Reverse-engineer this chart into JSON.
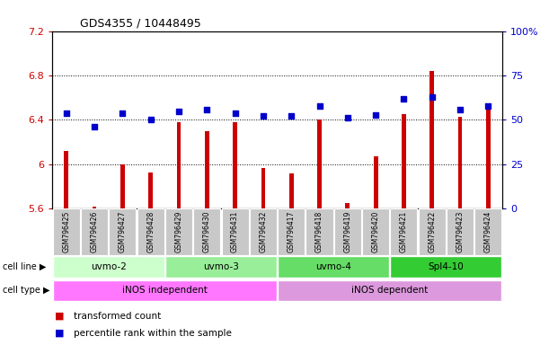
{
  "title": "GDS4355 / 10448495",
  "samples": [
    "GSM796425",
    "GSM796426",
    "GSM796427",
    "GSM796428",
    "GSM796429",
    "GSM796430",
    "GSM796431",
    "GSM796432",
    "GSM796417",
    "GSM796418",
    "GSM796419",
    "GSM796420",
    "GSM796421",
    "GSM796422",
    "GSM796423",
    "GSM796424"
  ],
  "bar_values": [
    6.12,
    5.62,
    6.0,
    5.93,
    6.38,
    6.3,
    6.38,
    5.97,
    5.92,
    6.4,
    5.65,
    6.07,
    6.45,
    6.84,
    6.43,
    6.5
  ],
  "dot_values": [
    54,
    46,
    54,
    50,
    55,
    56,
    54,
    52,
    52,
    58,
    51,
    53,
    62,
    63,
    56,
    58
  ],
  "ylim": [
    5.6,
    7.2
  ],
  "y2lim": [
    0,
    100
  ],
  "yticks": [
    5.6,
    6.0,
    6.4,
    6.8,
    7.2
  ],
  "y2ticks": [
    0,
    25,
    50,
    75,
    100
  ],
  "ytick_labels": [
    "5.6",
    "6",
    "6.4",
    "6.8",
    "7.2"
  ],
  "y2tick_labels": [
    "0",
    "25",
    "50",
    "75",
    "100%"
  ],
  "bar_color": "#cc0000",
  "dot_color": "#0000cc",
  "bar_base": 5.6,
  "cell_line_groups": [
    {
      "label": "uvmo-2",
      "start": 0,
      "end": 3,
      "color": "#ccffcc"
    },
    {
      "label": "uvmo-3",
      "start": 4,
      "end": 7,
      "color": "#99ee99"
    },
    {
      "label": "uvmo-4",
      "start": 8,
      "end": 11,
      "color": "#66dd66"
    },
    {
      "label": "Spl4-10",
      "start": 12,
      "end": 15,
      "color": "#33cc33"
    }
  ],
  "cell_type_groups": [
    {
      "label": "iNOS independent",
      "start": 0,
      "end": 7,
      "color": "#ff77ff"
    },
    {
      "label": "iNOS dependent",
      "start": 8,
      "end": 15,
      "color": "#dd99dd"
    }
  ],
  "legend_bar_label": "transformed count",
  "legend_dot_label": "percentile rank within the sample",
  "bg_color": "#ffffff",
  "plot_bg": "#ffffff",
  "axis_label_color_left": "#cc0000",
  "axis_label_color_right": "#0000cc"
}
